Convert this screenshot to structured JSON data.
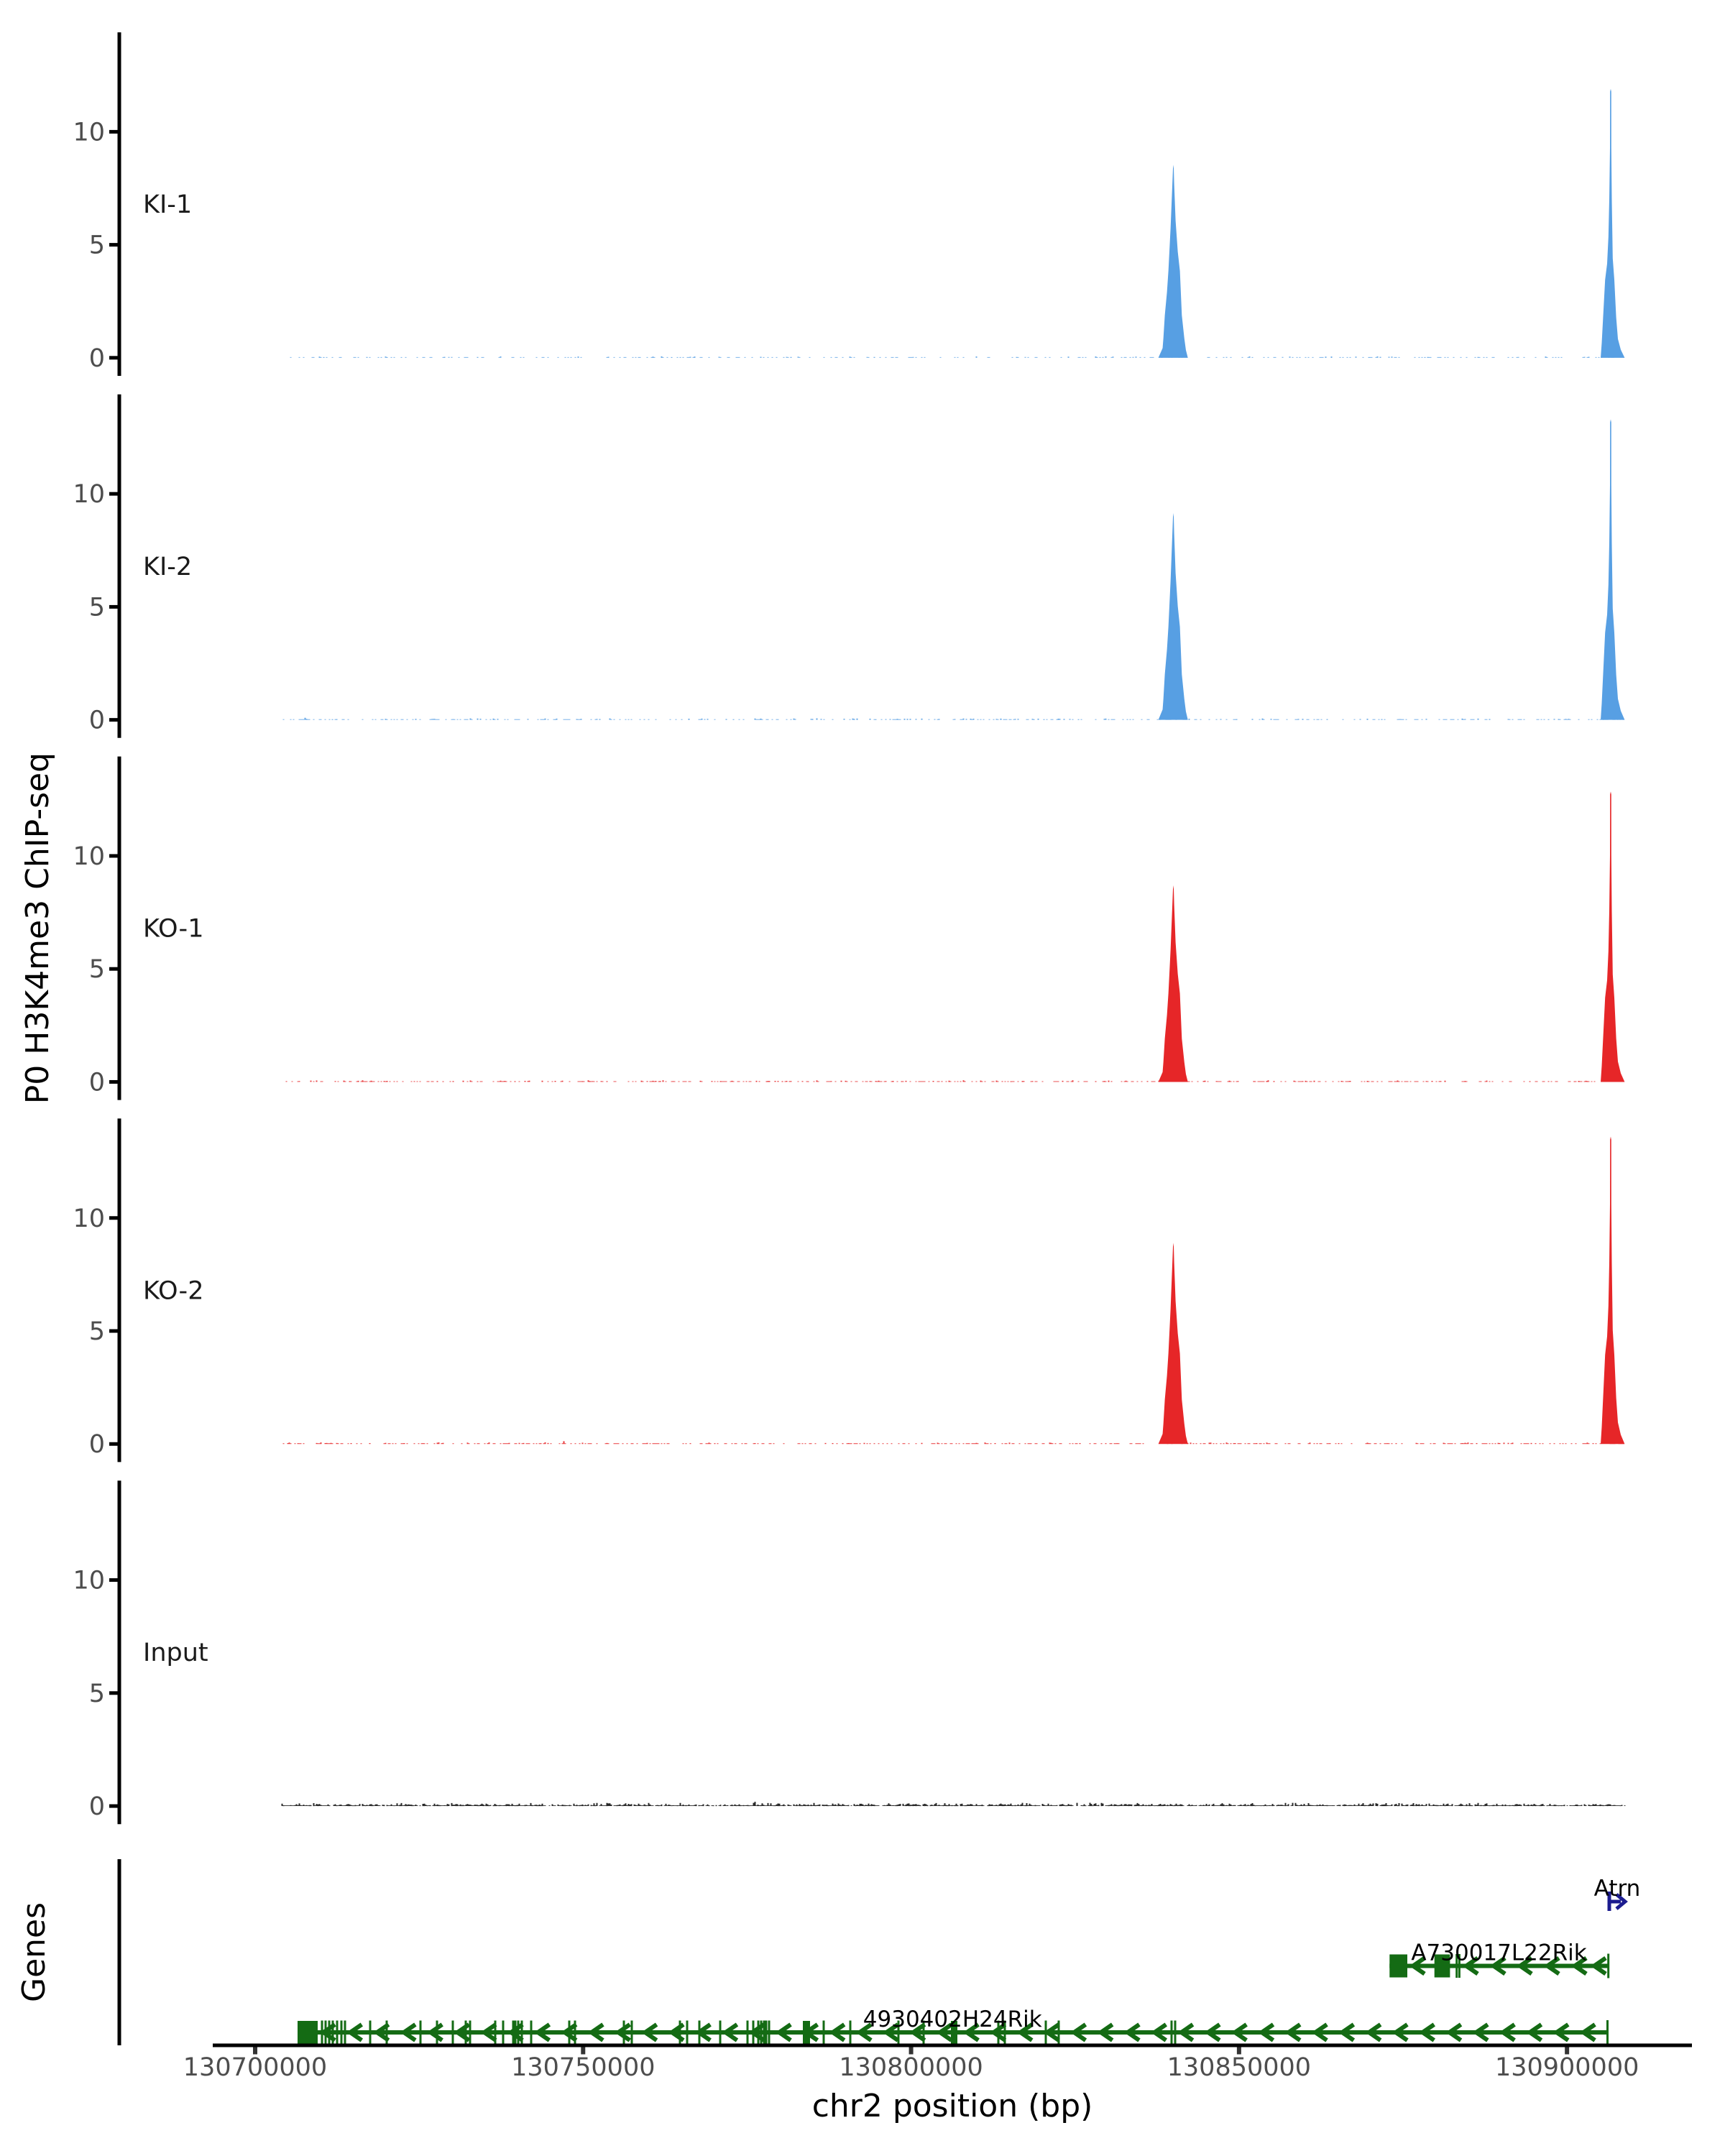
{
  "figure": {
    "background": "#ffffff",
    "axis_color": "#000000",
    "tick_label_color": "#4d4d4d",
    "track_label_color": "#1a1a1a"
  },
  "chart_data": {
    "type": "area",
    "description": "Genome browser style ChIP-seq coverage tracks with gene models",
    "x_axis": {
      "label": "chr2 position (bp)",
      "domain": [
        130693535,
        130919050
      ],
      "data_range": [
        130704000,
        130908695
      ],
      "ticks": [
        130700000,
        130750000,
        130800000,
        130850000,
        130900000
      ],
      "tick_labels": [
        "130700000",
        "130750000",
        "130800000",
        "130850000",
        "130900000"
      ]
    },
    "y_axis": {
      "label": "P0 H3K4me3 ChIP-seq",
      "ticks": [
        0,
        5,
        10
      ],
      "tick_labels": [
        "0",
        "5",
        "10"
      ],
      "range": [
        -0.8,
        14.4
      ]
    },
    "legend": null,
    "grid": false,
    "peak_shapes": {
      "left": [
        [
          -2300,
          0
        ],
        [
          -1650,
          0.05
        ],
        [
          -1534,
          0.1
        ],
        [
          -1315,
          0.22
        ],
        [
          -985,
          0.34
        ],
        [
          -767,
          0.45
        ],
        [
          -438,
          0.67
        ],
        [
          -164,
          0.9
        ],
        [
          -70,
          0.98
        ],
        [
          0,
          1.0
        ],
        [
          50,
          0.98
        ],
        [
          110,
          0.9
        ],
        [
          329,
          0.71
        ],
        [
          660,
          0.55
        ],
        [
          986,
          0.45
        ],
        [
          1280,
          0.22
        ],
        [
          1660,
          0.1
        ],
        [
          1900,
          0.04
        ],
        [
          2200,
          0
        ]
      ],
      "right": [
        [
          -1534,
          0
        ],
        [
          -1370,
          0.055
        ],
        [
          -1162,
          0.15
        ],
        [
          -855,
          0.29
        ],
        [
          -548,
          0.35
        ],
        [
          -350,
          0.45
        ],
        [
          -219,
          0.59
        ],
        [
          -110,
          0.78
        ],
        [
          -95,
          0.99
        ],
        [
          0,
          1.0
        ],
        [
          80,
          0.99
        ],
        [
          88,
          0.78
        ],
        [
          164,
          0.59
        ],
        [
          307,
          0.37
        ],
        [
          548,
          0.29
        ],
        [
          833,
          0.15
        ],
        [
          1096,
          0.07
        ],
        [
          1534,
          0.03
        ],
        [
          2126,
          0
        ]
      ]
    },
    "tracks": [
      {
        "name": "KI-1",
        "color": "#579FE3",
        "noise": {
          "seed": 11,
          "density": 0.3,
          "amp": 1.5,
          "spike_p": 0.003,
          "spike_amp": 3
        },
        "peaks": [
          {
            "center": 130840000,
            "apex": 8.54,
            "shape": "left"
          },
          {
            "center": 130906668,
            "apex": 11.9,
            "shape": "right"
          }
        ]
      },
      {
        "name": "KI-2",
        "color": "#579FE3",
        "noise": {
          "seed": 22,
          "density": 0.36,
          "amp": 1.6,
          "spike_p": 0.004,
          "spike_amp": 3
        },
        "peaks": [
          {
            "center": 130840000,
            "apex": 9.15,
            "shape": "left"
          },
          {
            "center": 130906668,
            "apex": 13.3,
            "shape": "right"
          }
        ]
      },
      {
        "name": "KO-1",
        "color": "#E62628",
        "noise": {
          "seed": 33,
          "density": 0.42,
          "amp": 1.6,
          "spike_p": 0.006,
          "spike_amp": 4
        },
        "peaks": [
          {
            "center": 130840000,
            "apex": 8.7,
            "shape": "left"
          },
          {
            "center": 130906668,
            "apex": 12.85,
            "shape": "right"
          }
        ]
      },
      {
        "name": "KO-2",
        "color": "#E62628",
        "noise": {
          "seed": 44,
          "density": 0.42,
          "amp": 1.6,
          "spike_p": 0.006,
          "spike_amp": 4
        },
        "peaks": [
          {
            "center": 130840000,
            "apex": 8.9,
            "shape": "left"
          },
          {
            "center": 130906668,
            "apex": 13.6,
            "shape": "right"
          }
        ]
      },
      {
        "name": "Input",
        "color": "#111111",
        "noise": {
          "seed": 55,
          "density": 0.92,
          "amp": 3.4,
          "spike_p": 0.004,
          "spike_amp": 4
        },
        "peaks": []
      }
    ],
    "genes_panel": {
      "label": "Genes",
      "gene_color": "#146B14",
      "tss_color": "#1C1C8F",
      "label_color": "#000000",
      "genes": [
        {
          "name": "Atrn",
          "strand": "+",
          "type": "tss_arrow",
          "position": 130906449
        },
        {
          "name": "A730017L22Rik",
          "strand": "-",
          "type": "model",
          "start": 130872950,
          "end": 130906306,
          "exon_boxes": [
            [
              130872950,
              130875657
            ],
            [
              130879788,
              130882166
            ]
          ],
          "exon_ticks": [
            130883185,
            130883590
          ],
          "end_ticks": [
            130906306
          ],
          "arrows": [
            130877410,
            130885519,
            130889683,
            130893737,
            130897901,
            130902066,
            130905024
          ]
        },
        {
          "name": "4930402H24Rik",
          "strand": "-",
          "type": "model",
          "start": 130706465,
          "end": 130906175,
          "exon_boxes": [
            [
              130706465,
              130709533
            ],
            [
              130783500,
              130784596
            ],
            [
              130806073,
              130807060
            ]
          ],
          "exon_ticks": [
            130710191,
            130710739,
            130711287,
            130711835,
            130712492,
            130713150,
            130713698,
            130717533,
            130720053,
            130725203,
            130727724,
            130730134,
            130732107,
            130732764,
            130736600,
            130737805,
            130739339,
            130739668,
            130740106,
            130740654,
            130742079,
            130747886,
            130748763,
            130756215,
            130757420,
            130764762,
            130765858,
            130767720,
            130770898,
            130775062,
            130775939,
            130776706,
            130777144,
            130777583,
            130777911,
            130778350,
            130786678,
            130790732,
            130798074,
            130801909,
            130813306,
            130814292,
            130820538,
            130822510,
            130839714,
            130840262
          ],
          "end_ticks": [
            130906175
          ],
          "arrows": [
            130711287,
            130715374,
            130719461,
            130723549,
            130727636,
            130731723,
            130735811,
            130739898,
            130743985,
            130748073,
            130752160,
            130756247,
            130760335,
            130764422,
            130768509,
            130772597,
            130776684,
            130780771,
            130784859,
            130788946,
            130793033,
            130797121,
            130801208,
            130805295,
            130809383,
            130813470,
            130817557,
            130821645,
            130825732,
            130829819,
            130833907,
            130837994,
            130842081,
            130846169,
            130850256,
            130854343,
            130858431,
            130862518,
            130866605,
            130870693,
            130874780,
            130878867,
            130882955,
            130887042,
            130891129,
            130895217,
            130899304,
            130903391
          ]
        }
      ]
    }
  }
}
